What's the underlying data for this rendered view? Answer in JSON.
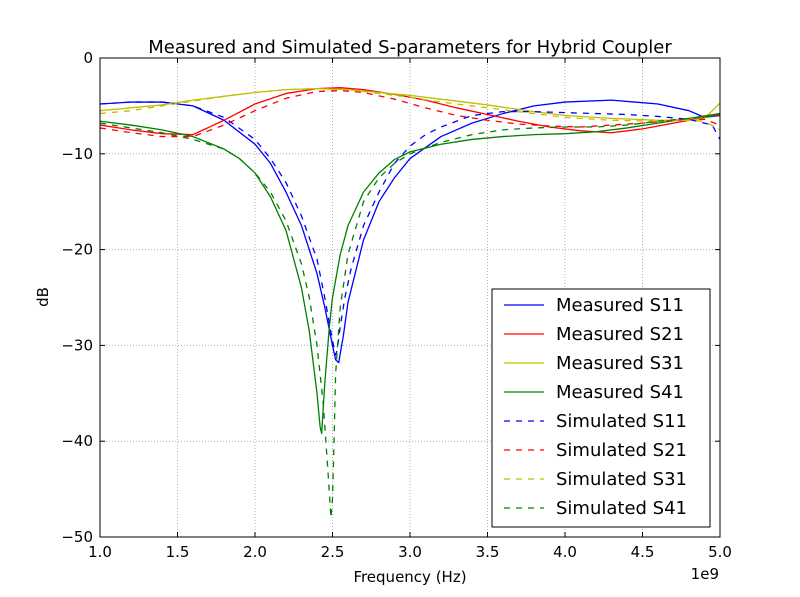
{
  "chart_data": {
    "type": "line",
    "title": "Measured and Simulated S-parameters for Hybrid Coupler",
    "xlabel": "Frequency (Hz)",
    "ylabel": "dB",
    "x_offset_label": "1e9",
    "xlim": [
      1.0,
      5.0
    ],
    "ylim": [
      -50,
      0
    ],
    "x_ticks": [
      1.0,
      1.5,
      2.0,
      2.5,
      3.0,
      3.5,
      4.0,
      4.5,
      5.0
    ],
    "x_tick_labels": [
      "1.0",
      "1.5",
      "2.0",
      "2.5",
      "3.0",
      "3.5",
      "4.0",
      "4.5",
      "5.0"
    ],
    "y_ticks": [
      0,
      -10,
      -20,
      -30,
      -40,
      -50
    ],
    "y_tick_labels": [
      "0",
      "−10",
      "−20",
      "−30",
      "−40",
      "−50"
    ],
    "grid": true,
    "legend_position": "bottom-right",
    "series": [
      {
        "name": "Measured S11",
        "color": "#0000ff",
        "dash": "solid",
        "x": [
          1.0,
          1.2,
          1.4,
          1.6,
          1.8,
          2.0,
          2.1,
          2.2,
          2.3,
          2.4,
          2.45,
          2.5,
          2.52,
          2.54,
          2.57,
          2.6,
          2.7,
          2.8,
          2.9,
          3.0,
          3.2,
          3.4,
          3.6,
          3.8,
          4.0,
          4.3,
          4.6,
          4.8,
          4.9,
          5.0
        ],
        "y": [
          -4.8,
          -4.6,
          -4.6,
          -5.0,
          -6.5,
          -9.0,
          -11.0,
          -14.0,
          -17.5,
          -22.5,
          -26.0,
          -30.0,
          -31.5,
          -31.8,
          -29.0,
          -25.5,
          -19.0,
          -15.0,
          -12.5,
          -10.5,
          -8.2,
          -6.8,
          -5.8,
          -5.0,
          -4.6,
          -4.4,
          -4.8,
          -5.5,
          -6.2,
          -6.0
        ]
      },
      {
        "name": "Measured S21",
        "color": "#ff0000",
        "dash": "solid",
        "x": [
          1.0,
          1.2,
          1.4,
          1.6,
          1.8,
          2.0,
          2.2,
          2.4,
          2.55,
          2.7,
          2.9,
          3.1,
          3.3,
          3.5,
          3.7,
          3.9,
          4.1,
          4.3,
          4.5,
          4.7,
          4.9,
          5.0
        ],
        "y": [
          -7.0,
          -7.5,
          -7.9,
          -8.0,
          -6.5,
          -4.8,
          -3.7,
          -3.2,
          -3.1,
          -3.3,
          -3.8,
          -4.4,
          -5.2,
          -5.9,
          -6.6,
          -7.2,
          -7.6,
          -7.8,
          -7.4,
          -6.8,
          -6.2,
          -5.9
        ]
      },
      {
        "name": "Measured S31",
        "color": "#bfbf00",
        "dash": "solid",
        "x": [
          1.0,
          1.2,
          1.4,
          1.6,
          1.8,
          2.0,
          2.2,
          2.4,
          2.6,
          2.8,
          3.0,
          3.2,
          3.5,
          3.8,
          4.0,
          4.3,
          4.6,
          4.8,
          4.9,
          5.0
        ],
        "y": [
          -5.5,
          -5.2,
          -4.9,
          -4.4,
          -4.0,
          -3.6,
          -3.3,
          -3.2,
          -3.3,
          -3.6,
          -3.9,
          -4.3,
          -4.9,
          -5.6,
          -6.0,
          -6.3,
          -6.5,
          -6.5,
          -6.3,
          -4.7
        ]
      },
      {
        "name": "Measured S41",
        "color": "#008000",
        "dash": "solid",
        "x": [
          1.0,
          1.2,
          1.4,
          1.6,
          1.8,
          1.9,
          2.0,
          2.1,
          2.2,
          2.3,
          2.35,
          2.4,
          2.42,
          2.43,
          2.45,
          2.48,
          2.5,
          2.55,
          2.6,
          2.7,
          2.8,
          2.9,
          3.0,
          3.2,
          3.4,
          3.6,
          3.8,
          4.0,
          4.2,
          4.4,
          4.6,
          4.8,
          5.0
        ],
        "y": [
          -6.6,
          -7.0,
          -7.5,
          -8.2,
          -9.5,
          -10.5,
          -12.0,
          -14.5,
          -18.0,
          -24.0,
          -28.5,
          -35.0,
          -38.5,
          -39.2,
          -34.0,
          -28.0,
          -25.0,
          -20.5,
          -17.5,
          -14.0,
          -12.0,
          -10.6,
          -9.8,
          -9.0,
          -8.5,
          -8.2,
          -8.0,
          -7.9,
          -7.7,
          -7.3,
          -6.8,
          -6.3,
          -5.8
        ]
      },
      {
        "name": "Simulated S11",
        "color": "#0000ff",
        "dash": "dashed",
        "x": [
          1.0,
          1.2,
          1.4,
          1.6,
          1.8,
          2.0,
          2.1,
          2.2,
          2.3,
          2.4,
          2.45,
          2.5,
          2.52,
          2.53,
          2.55,
          2.58,
          2.62,
          2.7,
          2.8,
          2.9,
          3.0,
          3.1,
          3.2,
          3.4,
          3.6,
          3.8,
          4.0,
          4.2,
          4.4,
          4.6,
          4.8,
          4.95,
          5.0
        ],
        "y": [
          -4.8,
          -4.6,
          -4.6,
          -5.0,
          -6.2,
          -8.5,
          -10.5,
          -13.0,
          -16.5,
          -21.0,
          -25.0,
          -29.5,
          -31.0,
          -30.5,
          -28.0,
          -25.0,
          -22.0,
          -17.5,
          -14.0,
          -11.0,
          -9.2,
          -8.0,
          -7.2,
          -6.0,
          -5.6,
          -5.6,
          -5.7,
          -5.8,
          -5.9,
          -6.1,
          -6.4,
          -7.0,
          -8.5
        ]
      },
      {
        "name": "Simulated S21",
        "color": "#ff0000",
        "dash": "dashed",
        "x": [
          1.0,
          1.2,
          1.4,
          1.6,
          1.8,
          2.0,
          2.2,
          2.4,
          2.55,
          2.7,
          2.9,
          3.1,
          3.3,
          3.5,
          3.7,
          3.9,
          4.1,
          4.3,
          4.5,
          4.7,
          4.9,
          5.0
        ],
        "y": [
          -7.3,
          -7.8,
          -8.2,
          -8.2,
          -7.0,
          -5.5,
          -4.2,
          -3.5,
          -3.4,
          -3.6,
          -4.3,
          -5.2,
          -6.0,
          -6.5,
          -6.9,
          -7.1,
          -7.2,
          -7.0,
          -6.8,
          -6.5,
          -6.4,
          -7.0
        ]
      },
      {
        "name": "Simulated S31",
        "color": "#bfbf00",
        "dash": "dashed",
        "x": [
          1.0,
          1.2,
          1.4,
          1.6,
          1.8,
          2.0,
          2.2,
          2.4,
          2.6,
          2.8,
          3.0,
          3.2,
          3.5,
          3.8,
          4.0,
          4.3,
          4.6,
          4.8,
          4.9,
          5.0
        ],
        "y": [
          -5.8,
          -5.5,
          -5.0,
          -4.5,
          -4.0,
          -3.6,
          -3.3,
          -3.2,
          -3.3,
          -3.7,
          -4.1,
          -4.6,
          -5.2,
          -5.8,
          -6.2,
          -6.5,
          -6.6,
          -6.5,
          -6.6,
          -7.5
        ]
      },
      {
        "name": "Simulated S41",
        "color": "#008000",
        "dash": "dashed",
        "x": [
          1.0,
          1.2,
          1.4,
          1.6,
          1.8,
          1.9,
          2.0,
          2.1,
          2.2,
          2.3,
          2.35,
          2.4,
          2.44,
          2.47,
          2.49,
          2.5,
          2.51,
          2.52,
          2.55,
          2.6,
          2.7,
          2.8,
          2.9,
          3.0,
          3.2,
          3.4,
          3.6,
          3.8,
          4.0,
          4.2,
          4.4,
          4.6,
          4.8,
          5.0
        ],
        "y": [
          -6.8,
          -7.3,
          -7.8,
          -8.5,
          -9.5,
          -10.5,
          -12.0,
          -14.0,
          -17.0,
          -21.5,
          -25.0,
          -30.0,
          -36.0,
          -43.0,
          -48.0,
          -46.0,
          -40.0,
          -33.0,
          -26.0,
          -20.5,
          -15.0,
          -12.5,
          -11.0,
          -10.0,
          -8.8,
          -8.0,
          -7.5,
          -7.3,
          -7.2,
          -7.2,
          -7.0,
          -6.6,
          -6.3,
          -6.0
        ]
      }
    ]
  }
}
